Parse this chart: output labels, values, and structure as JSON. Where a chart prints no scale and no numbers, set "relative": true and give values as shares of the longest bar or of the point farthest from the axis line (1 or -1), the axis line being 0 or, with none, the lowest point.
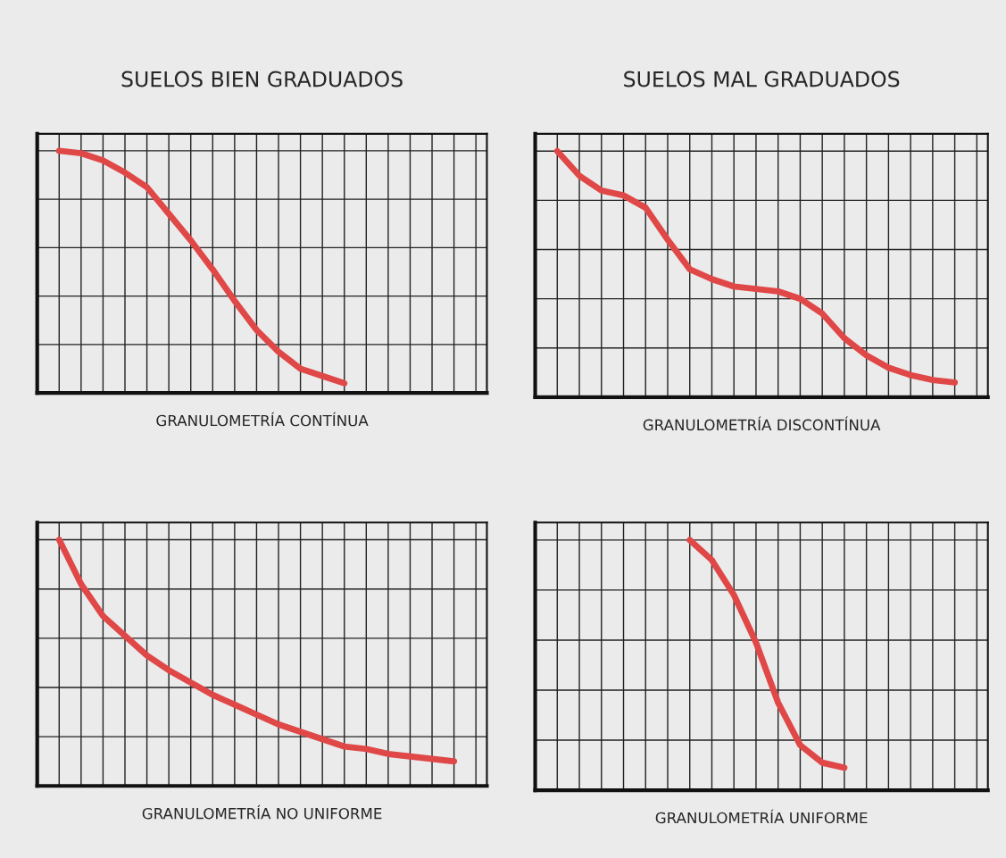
{
  "chart_data": [
    {
      "type": "line",
      "relative": true,
      "title": "SUELOS BIEN GRADUADOS",
      "xlabel": "GRANULOMETRÍA CONTÍNUA",
      "grid": true,
      "categories": [
        null,
        null,
        null,
        null,
        null,
        null,
        null,
        null,
        null,
        null,
        null,
        null,
        null,
        null,
        null,
        null,
        null,
        null,
        null,
        null,
        null
      ],
      "series": [
        {
          "color": "#e04848",
          "values": [
            null,
            1,
            0.99,
            0.96,
            0.91,
            0.85,
            0.74,
            0.63,
            0.51,
            0.38,
            0.26,
            0.17,
            0.1,
            0.07,
            0.04,
            null,
            null,
            null,
            null,
            null,
            null
          ]
        }
      ]
    },
    {
      "type": "line",
      "relative": true,
      "title": "SUELOS MAL GRADUADOS",
      "xlabel": "GRANULOMETRÍA DISCONTÍNUA",
      "grid": true,
      "categories": [
        null,
        null,
        null,
        null,
        null,
        null,
        null,
        null,
        null,
        null,
        null,
        null,
        null,
        null,
        null,
        null,
        null,
        null,
        null,
        null,
        null
      ],
      "series": [
        {
          "color": "#e04848",
          "values": [
            null,
            1,
            0.9,
            0.84,
            0.82,
            0.77,
            0.64,
            0.52,
            0.48,
            0.45,
            0.44,
            0.43,
            0.4,
            0.34,
            0.24,
            0.17,
            0.12,
            0.09,
            0.07,
            0.06,
            null
          ]
        }
      ]
    },
    {
      "type": "line",
      "relative": true,
      "xlabel": "GRANULOMETRÍA NO UNIFORME",
      "grid": true,
      "categories": [
        null,
        null,
        null,
        null,
        null,
        null,
        null,
        null,
        null,
        null,
        null,
        null,
        null,
        null,
        null,
        null,
        null,
        null,
        null,
        null,
        null
      ],
      "series": [
        {
          "color": "#e04848",
          "values": [
            null,
            1,
            0.82,
            0.69,
            0.61,
            0.53,
            0.47,
            0.42,
            0.37,
            0.33,
            0.29,
            0.25,
            0.22,
            0.19,
            0.16,
            0.15,
            0.13,
            0.12,
            0.11,
            0.1,
            null
          ]
        }
      ]
    },
    {
      "type": "line",
      "relative": true,
      "xlabel": "GRANULOMETRÍA UNIFORME",
      "grid": true,
      "categories": [
        null,
        null,
        null,
        null,
        null,
        null,
        null,
        null,
        null,
        null,
        null,
        null,
        null,
        null,
        null,
        null,
        null,
        null,
        null,
        null,
        null
      ],
      "series": [
        {
          "color": "#e04848",
          "values": [
            null,
            null,
            null,
            null,
            null,
            null,
            null,
            1,
            0.92,
            0.78,
            0.59,
            0.35,
            0.18,
            0.11,
            0.09,
            null,
            null,
            null,
            null,
            null,
            null
          ]
        }
      ]
    }
  ]
}
